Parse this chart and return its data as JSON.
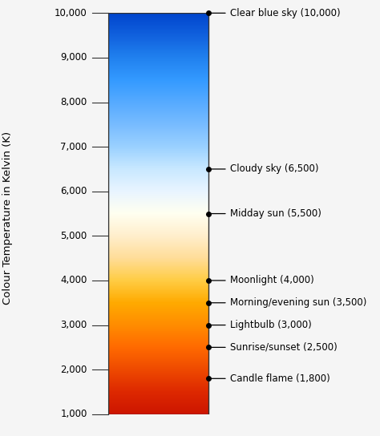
{
  "title": "Colour Temperature in Kelvin (K)",
  "y_min": 1000,
  "y_max": 10000,
  "yticks": [
    1000,
    2000,
    3000,
    4000,
    5000,
    6000,
    7000,
    8000,
    9000,
    10000
  ],
  "ytick_labels": [
    "1,000",
    "2,000",
    "3,000",
    "4,000",
    "5,000",
    "6,000",
    "7,000",
    "8,000",
    "9,000",
    "10,000"
  ],
  "annotations": [
    {
      "temp": 10000,
      "label": "Clear blue sky (10,000)"
    },
    {
      "temp": 6500,
      "label": "Cloudy sky (6,500)"
    },
    {
      "temp": 5500,
      "label": "Midday sun (5,500)"
    },
    {
      "temp": 4000,
      "label": "Moonlight (4,000)"
    },
    {
      "temp": 3500,
      "label": "Morning/evening sun (3,500)"
    },
    {
      "temp": 3000,
      "label": "Lightbulb (3,000)"
    },
    {
      "temp": 2500,
      "label": "Sunrise/sunset (2,500)"
    },
    {
      "temp": 1800,
      "label": "Candle flame (1,800)"
    }
  ],
  "gradient_colors": [
    [
      1000,
      "#cc1500"
    ],
    [
      1500,
      "#dd2800"
    ],
    [
      2000,
      "#ee4a00"
    ],
    [
      2500,
      "#ff6a00"
    ],
    [
      3000,
      "#ff8c00"
    ],
    [
      3500,
      "#ffaa00"
    ],
    [
      4000,
      "#ffcc44"
    ],
    [
      4500,
      "#ffdd99"
    ],
    [
      5000,
      "#ffeecc"
    ],
    [
      5500,
      "#fffff0"
    ],
    [
      6000,
      "#e8f4ff"
    ],
    [
      6500,
      "#c8e8ff"
    ],
    [
      7000,
      "#99d0ff"
    ],
    [
      7500,
      "#77bbff"
    ],
    [
      8000,
      "#55aaff"
    ],
    [
      8500,
      "#3399ff"
    ],
    [
      9000,
      "#2080ee"
    ],
    [
      9500,
      "#1060dd"
    ],
    [
      10000,
      "#0044cc"
    ]
  ],
  "background_color": "#f5f5f5",
  "dot_color": "#000000",
  "dot_size": 4,
  "arrow_color": "#000000",
  "text_fontsize": 8.5,
  "label_fontsize": 8.5,
  "ylabel_fontsize": 9.5
}
